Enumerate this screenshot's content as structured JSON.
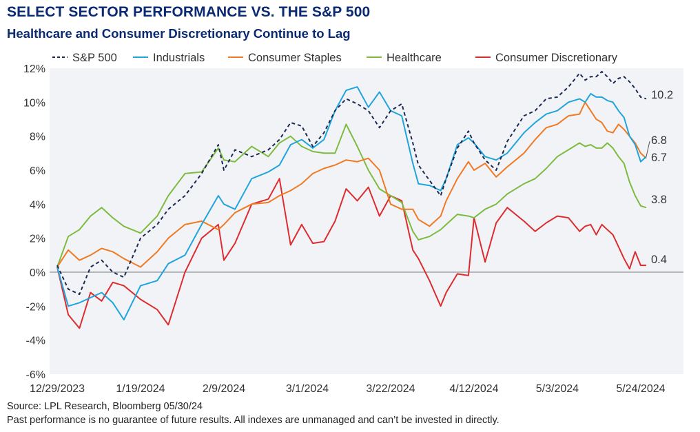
{
  "header": {
    "title": "SELECT SECTOR PERFORMANCE VS. THE S&P 500",
    "subtitle": "Healthcare and Consumer Discretionary Continue to Lag"
  },
  "footer": {
    "source": "Source: LPL Research, Bloomberg 05/30/24",
    "disclaimer": "Past performance is no guarantee of future results. All indexes are unmanaged and can’t be invested in directly."
  },
  "chart_data": {
    "type": "line",
    "title": "SELECT SECTOR PERFORMANCE VS. THE S&P 500",
    "subtitle": "Healthcare and Consumer Discretionary Continue to Lag",
    "xlabel": "",
    "ylabel": "",
    "ylim": [
      -6,
      12
    ],
    "xlim": [
      0,
      106
    ],
    "yticks": [
      -6,
      -4,
      -2,
      0,
      2,
      4,
      6,
      8,
      10,
      12
    ],
    "ytick_labels": [
      "-6%",
      "-4%",
      "-2%",
      "0%",
      "2%",
      "4%",
      "6%",
      "8%",
      "10%",
      "12%"
    ],
    "xticks": [
      0,
      15,
      30,
      45,
      60,
      75,
      90,
      105
    ],
    "xtick_labels": [
      "12/29/2023",
      "1/19/2024",
      "2/9/2024",
      "3/1/2024",
      "3/22/2024",
      "4/12/2024",
      "5/3/2024",
      "5/24/2024"
    ],
    "grid": false,
    "legend_position": "top",
    "background": "#f2f3f7",
    "series": [
      {
        "name": "S&P 500",
        "color": "#1b2a52",
        "dash": true,
        "end_label": "10.2",
        "x": [
          0,
          2,
          4,
          6,
          8,
          10,
          12,
          15,
          18,
          20,
          23,
          26,
          29,
          30,
          32,
          35,
          38,
          40,
          42,
          44,
          46,
          48,
          50,
          52,
          54,
          56,
          58,
          60,
          62,
          64,
          65,
          67,
          69,
          70,
          72,
          74,
          75,
          77,
          79,
          81,
          84,
          86,
          88,
          90,
          92,
          94,
          95,
          96,
          97,
          98,
          99,
          100,
          101,
          102,
          103,
          104,
          105,
          106
        ],
        "y": [
          0.4,
          -1.0,
          -1.3,
          0.3,
          0.7,
          0,
          -0.3,
          2.0,
          2.8,
          3.7,
          4.5,
          5.8,
          7.5,
          6.0,
          7.2,
          6.8,
          7.2,
          7.8,
          8.8,
          8.6,
          7.4,
          8.2,
          9.5,
          10.2,
          9.9,
          9.5,
          8.5,
          9.5,
          9.9,
          7.6,
          6.3,
          5.4,
          4.5,
          5.5,
          7.3,
          8.3,
          7.6,
          6.6,
          6.0,
          7.7,
          9.2,
          9.5,
          10.2,
          10.3,
          10.9,
          11.7,
          11.3,
          11.5,
          11.5,
          11.8,
          11.5,
          11.1,
          11.4,
          11.5,
          11.2,
          10.8,
          10.3,
          10.2
        ]
      },
      {
        "name": "Industrials",
        "color": "#1fa4dc",
        "dash": false,
        "end_label": "6.8",
        "x": [
          0,
          2,
          4,
          6,
          8,
          10,
          12,
          15,
          18,
          20,
          23,
          26,
          29,
          30,
          32,
          35,
          38,
          40,
          42,
          44,
          46,
          48,
          50,
          52,
          54,
          56,
          58,
          60,
          62,
          64,
          65,
          67,
          69,
          70,
          72,
          74,
          75,
          77,
          79,
          81,
          84,
          86,
          88,
          90,
          92,
          94,
          95,
          96,
          97,
          98,
          99,
          100,
          101,
          102,
          103,
          104,
          105,
          106
        ],
        "y": [
          0.3,
          -2.0,
          -1.8,
          -1.5,
          -1.2,
          -1.8,
          -2.8,
          -0.8,
          -0.5,
          0.5,
          1.0,
          2.8,
          4.5,
          4.0,
          3.7,
          5.5,
          5.9,
          6.3,
          7.5,
          7.8,
          7.3,
          7.8,
          9.5,
          10.7,
          10.9,
          9.7,
          10.6,
          9.5,
          9.2,
          6.4,
          5.2,
          5.1,
          4.8,
          5.5,
          7.5,
          7.9,
          7.6,
          6.8,
          6.6,
          7.0,
          8.2,
          8.8,
          9.3,
          9.5,
          10.0,
          10.2,
          10.0,
          10.5,
          10.3,
          10.3,
          10.1,
          10.0,
          9.5,
          9.1,
          8.0,
          7.5,
          6.5,
          6.8
        ]
      },
      {
        "name": "Consumer Staples",
        "color": "#f07a22",
        "dash": false,
        "end_label": "6.7",
        "x": [
          0,
          2,
          4,
          6,
          8,
          10,
          12,
          15,
          18,
          20,
          23,
          26,
          29,
          30,
          32,
          35,
          38,
          40,
          42,
          44,
          46,
          48,
          50,
          52,
          54,
          56,
          58,
          60,
          62,
          64,
          65,
          67,
          69,
          70,
          72,
          74,
          75,
          77,
          79,
          81,
          84,
          86,
          88,
          90,
          92,
          94,
          95,
          96,
          97,
          98,
          99,
          100,
          101,
          102,
          103,
          104,
          105,
          106
        ],
        "y": [
          0.3,
          1.3,
          0.7,
          1.0,
          1.4,
          1.2,
          0.8,
          0.3,
          1.2,
          2.0,
          2.8,
          3.0,
          2.5,
          2.8,
          3.5,
          4.0,
          4.1,
          4.5,
          4.8,
          5.2,
          5.8,
          6.1,
          6.3,
          6.6,
          6.5,
          6.7,
          6.0,
          4.0,
          3.7,
          3.7,
          3.1,
          2.7,
          3.3,
          4.2,
          5.5,
          6.5,
          6.0,
          6.4,
          5.6,
          6.2,
          7.0,
          7.8,
          8.5,
          8.7,
          9.2,
          9.3,
          10.0,
          9.5,
          9.0,
          8.8,
          8.3,
          8.2,
          8.7,
          8.4,
          8.0,
          7.6,
          7.0,
          6.7
        ]
      },
      {
        "name": "Healthcare",
        "color": "#7dbb3f",
        "dash": false,
        "end_label": "3.8",
        "x": [
          0,
          2,
          4,
          6,
          8,
          10,
          12,
          15,
          18,
          20,
          23,
          26,
          29,
          30,
          32,
          35,
          38,
          40,
          42,
          44,
          46,
          48,
          50,
          52,
          54,
          56,
          58,
          60,
          62,
          64,
          65,
          67,
          69,
          70,
          72,
          74,
          75,
          77,
          79,
          81,
          84,
          86,
          88,
          90,
          92,
          94,
          95,
          96,
          97,
          98,
          99,
          100,
          101,
          102,
          103,
          104,
          105,
          106
        ],
        "y": [
          0.3,
          2.1,
          2.5,
          3.3,
          3.8,
          3.2,
          2.7,
          2.3,
          3.3,
          4.5,
          5.8,
          5.9,
          7.3,
          6.6,
          6.5,
          7.4,
          6.8,
          7.6,
          8.0,
          7.4,
          7.1,
          7.0,
          7.0,
          8.7,
          7.4,
          6.0,
          4.9,
          4.5,
          4.1,
          2.4,
          1.9,
          2.1,
          2.5,
          2.8,
          3.4,
          3.3,
          3.2,
          3.7,
          4.0,
          4.6,
          5.2,
          5.5,
          6.1,
          6.8,
          7.2,
          7.6,
          7.4,
          7.5,
          7.3,
          7.3,
          7.6,
          7.3,
          6.8,
          6.4,
          5.3,
          4.5,
          3.9,
          3.8
        ]
      },
      {
        "name": "Consumer Discretionary",
        "color": "#dc2c2f",
        "dash": false,
        "end_label": "0.4",
        "x": [
          0,
          2,
          4,
          6,
          8,
          10,
          12,
          15,
          18,
          20,
          23,
          26,
          29,
          30,
          32,
          35,
          38,
          40,
          42,
          44,
          46,
          48,
          50,
          52,
          54,
          56,
          58,
          60,
          62,
          64,
          65,
          67,
          69,
          70,
          72,
          74,
          75,
          77,
          79,
          81,
          84,
          86,
          88,
          90,
          92,
          94,
          95,
          96,
          97,
          98,
          99,
          100,
          101,
          102,
          103,
          104,
          105,
          106
        ],
        "y": [
          0.3,
          -2.5,
          -3.3,
          -1.2,
          -1.7,
          -0.6,
          -0.8,
          -1.6,
          -2.2,
          -3.1,
          0,
          2.0,
          2.8,
          0.7,
          1.7,
          4.0,
          4.3,
          5.5,
          1.6,
          2.8,
          1.7,
          1.8,
          3.0,
          4.9,
          4.2,
          5.0,
          3.3,
          4.5,
          4.2,
          1.3,
          0.8,
          -0.5,
          -2.0,
          -1.2,
          -0.1,
          -0.2,
          3.2,
          0.6,
          2.9,
          3.8,
          3.0,
          2.4,
          2.9,
          3.3,
          3.2,
          2.4,
          2.7,
          2.8,
          2.2,
          2.8,
          2.5,
          2.2,
          1.5,
          0.8,
          0.2,
          1.2,
          0.4,
          0.4
        ]
      }
    ],
    "reference_line": {
      "y": 0,
      "color": "#777777"
    }
  }
}
